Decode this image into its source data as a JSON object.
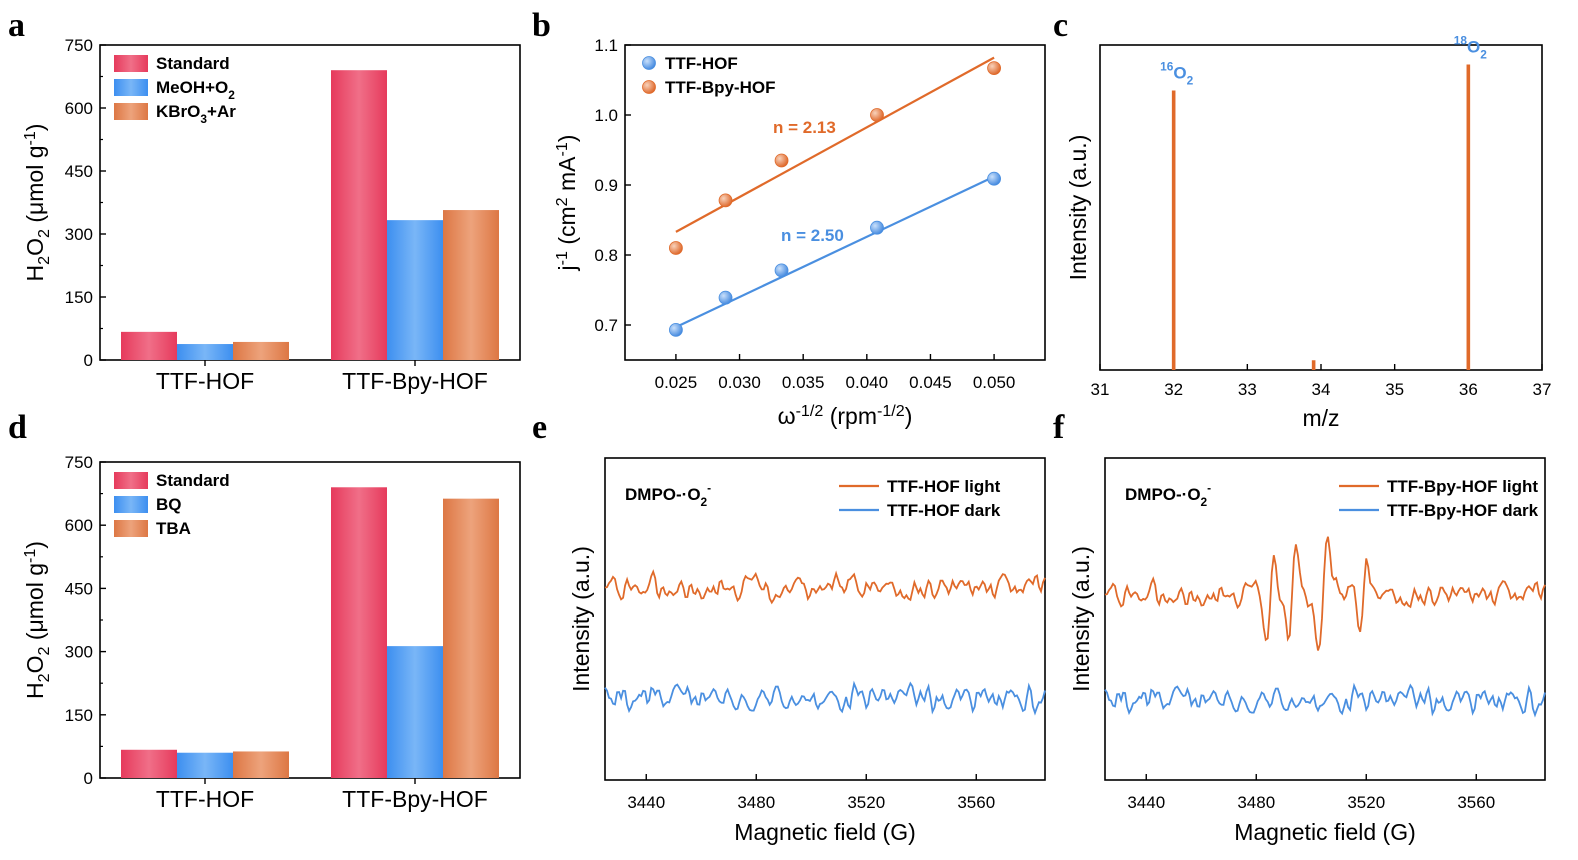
{
  "chart_data": [
    {
      "panel": "a",
      "type": "bar",
      "categories": [
        "TTF-HOF",
        "TTF-Bpy-HOF"
      ],
      "series": [
        {
          "name": "Standard",
          "values": [
            67,
            690
          ],
          "color": "#ea4a66"
        },
        {
          "name": "MeOH+O2",
          "values": [
            38,
            333
          ],
          "color": "#4a98ec"
        },
        {
          "name": "KBrO3+Ar",
          "values": [
            43,
            357
          ],
          "color": "#e38352"
        }
      ],
      "ylabel": "H2O2 (μmol g-1)",
      "ylim": [
        0,
        750
      ],
      "yticks": [
        "0",
        "150",
        "300",
        "450",
        "600",
        "750"
      ],
      "legend": "top-left"
    },
    {
      "panel": "b",
      "type": "scatter",
      "series": [
        {
          "name": "TTF-HOF",
          "color": "#4a8fe0",
          "points": [
            [
              0.025,
              0.693
            ],
            [
              0.0289,
              0.739
            ],
            [
              0.0333,
              0.778
            ],
            [
              0.0408,
              0.839
            ],
            [
              0.05,
              0.909
            ]
          ],
          "fit": [
            [
              0.025,
              0.697
            ],
            [
              0.05,
              0.912
            ]
          ]
        },
        {
          "name": "TTF-Bpy-HOF",
          "color": "#e06a2a",
          "points": [
            [
              0.025,
              0.81
            ],
            [
              0.0289,
              0.878
            ],
            [
              0.0333,
              0.935
            ],
            [
              0.0408,
              1.0
            ],
            [
              0.05,
              1.067
            ]
          ],
          "fit": [
            [
              0.025,
              0.833
            ],
            [
              0.05,
              1.082
            ]
          ]
        }
      ],
      "annotations": [
        "n = 2.13",
        "n = 2.50"
      ],
      "xlabel": "ω-1/2 (rpm-1/2)",
      "ylabel": "j-1 (cm2 mA-1)",
      "xlim": [
        0.021,
        0.054
      ],
      "ylim": [
        0.65,
        1.1
      ],
      "xticks": [
        "0.025",
        "0.030",
        "0.035",
        "0.040",
        "0.045",
        "0.050"
      ],
      "yticks": [
        "0.7",
        "0.8",
        "0.9",
        "1.0",
        "1.1"
      ],
      "legend": "top-left"
    },
    {
      "panel": "c",
      "type": "bar",
      "color": "#e06a2a",
      "peaks": [
        {
          "mz": 32,
          "value": 0.86
        },
        {
          "mz": 33.9,
          "value": 0.03
        },
        {
          "mz": 36,
          "value": 0.94
        }
      ],
      "annotations": [
        "16O2",
        "18O2"
      ],
      "xlabel": "m/z",
      "ylabel": "Intensity (a.u.)",
      "xlim": [
        31,
        37
      ],
      "xticks": [
        "31",
        "32",
        "33",
        "34",
        "35",
        "36",
        "37"
      ]
    },
    {
      "panel": "d",
      "type": "bar",
      "categories": [
        "TTF-HOF",
        "TTF-Bpy-HOF"
      ],
      "series": [
        {
          "name": "Standard",
          "values": [
            67,
            690
          ],
          "color": "#ea4a66"
        },
        {
          "name": "BQ",
          "values": [
            60,
            313
          ],
          "color": "#4a98ec"
        },
        {
          "name": "TBA",
          "values": [
            63,
            663
          ],
          "color": "#e38352"
        }
      ],
      "ylabel": "H2O2 (μmol g-1)",
      "ylim": [
        0,
        750
      ],
      "yticks": [
        "0",
        "150",
        "300",
        "450",
        "600",
        "750"
      ],
      "legend": "top-left"
    },
    {
      "panel": "e",
      "type": "line",
      "annotation": "DMPO-·O2-",
      "series": [
        {
          "name": "TTF-HOF light",
          "color": "#e06a2a"
        },
        {
          "name": "TTF-HOF dark",
          "color": "#4a8fe0"
        }
      ],
      "xlabel": "Magnetic field (G)",
      "ylabel": "Intensity (a.u.)",
      "xlim": [
        3425,
        3585
      ],
      "xticks": [
        "3440",
        "3480",
        "3520",
        "3560"
      ],
      "legend": "top-right"
    },
    {
      "panel": "f",
      "type": "line",
      "annotation": "DMPO-·O2-",
      "series": [
        {
          "name": "TTF-Bpy-HOF light",
          "color": "#e06a2a"
        },
        {
          "name": "TTF-Bpy-HOF dark",
          "color": "#4a8fe0"
        }
      ],
      "xlabel": "Magnetic field (G)",
      "ylabel": "Intensity (a.u.)",
      "xlim": [
        3425,
        3585
      ],
      "xticks": [
        "3440",
        "3480",
        "3520",
        "3560"
      ],
      "legend": "top-right"
    }
  ]
}
